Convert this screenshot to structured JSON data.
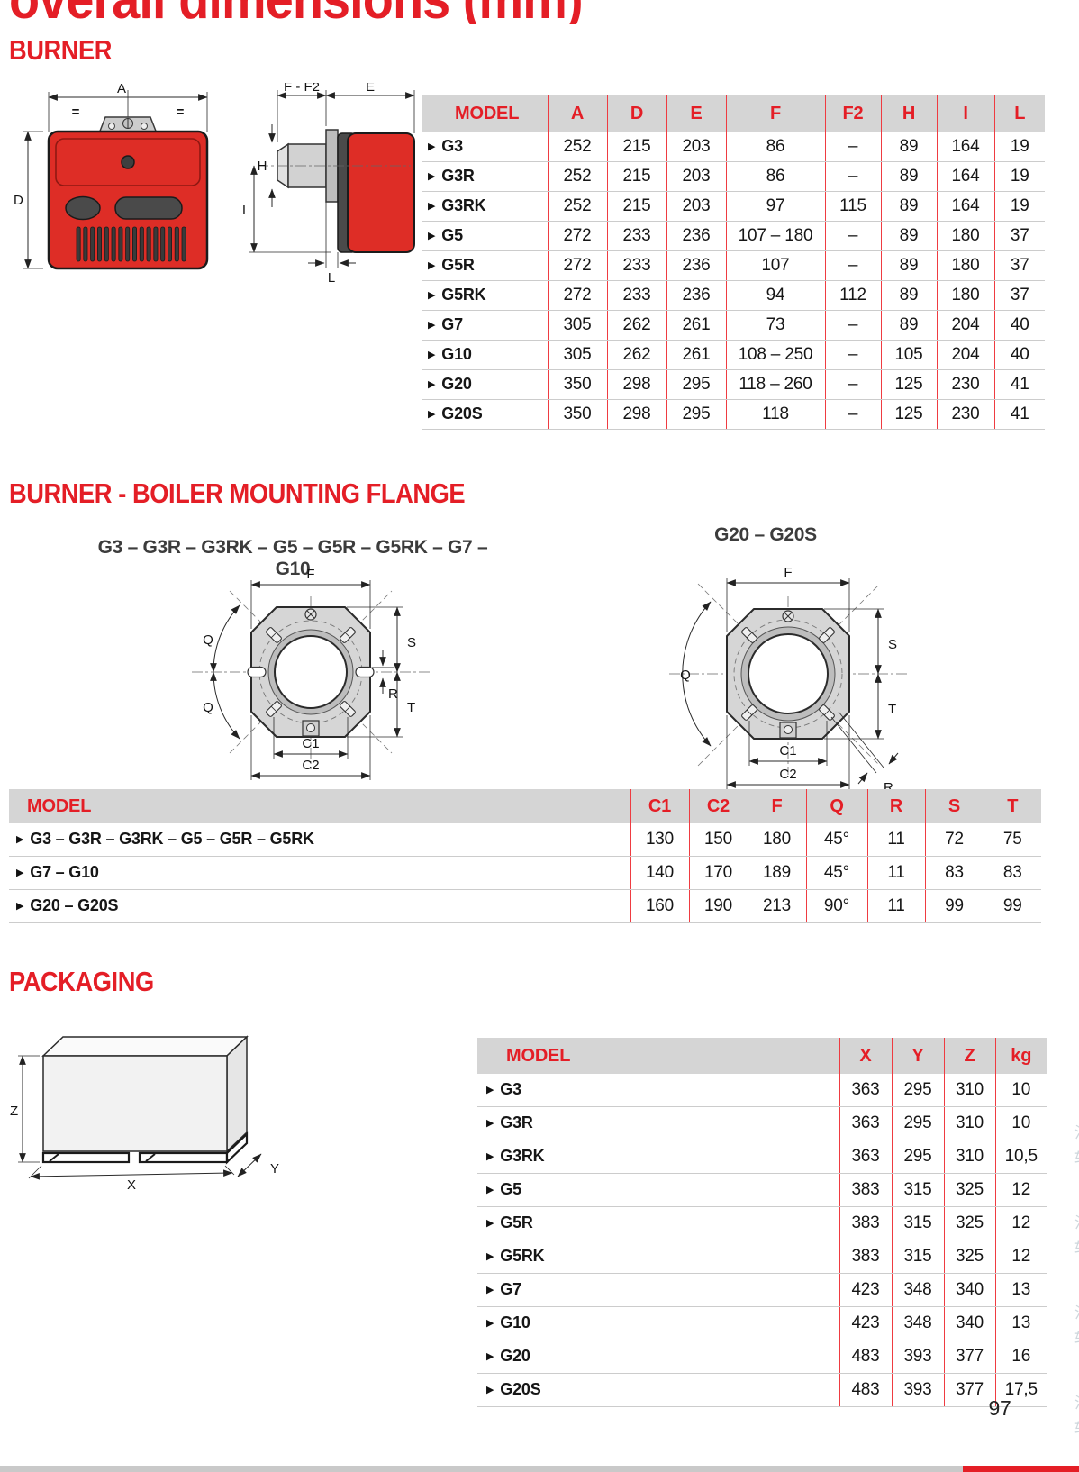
{
  "page": {
    "clipped_title": "overall dimensions (mm)",
    "page_number": "97"
  },
  "headings": {
    "burner": "BURNER",
    "flange": "BURNER - BOILER MOUNTING FLANGE",
    "packaging": "PACKAGING"
  },
  "flange_captions": {
    "small_models": "G3 – G3R – G3RK – G5 – G5R – G5RK – G7 – G10",
    "large_models": "G20 – G20S"
  },
  "icons": {
    "model_bullet": "▶"
  },
  "diagrams": {
    "burner_front": {
      "a": "A",
      "d": "D",
      "eq_left": "=",
      "eq_right": "="
    },
    "burner_side": {
      "f_f2": "F - F2",
      "e": "E",
      "h": "H",
      "i": "I",
      "l": "L"
    },
    "flange_small": {
      "f": "F",
      "q_upper": "Q",
      "q_lower": "Q",
      "r": "R",
      "s": "S",
      "t": "T",
      "c1": "C1",
      "c2": "C2"
    },
    "flange_large": {
      "f": "F",
      "q": "Q",
      "r": "R",
      "s": "S",
      "t": "T",
      "c1": "C1",
      "c2": "C2"
    },
    "package": {
      "x": "X",
      "y": "Y",
      "z": "Z"
    }
  },
  "burner_table": {
    "columns": [
      "MODEL",
      "A",
      "D",
      "E",
      "F",
      "F2",
      "H",
      "I",
      "L"
    ],
    "rows": [
      {
        "model": "G3",
        "values": [
          "252",
          "215",
          "203",
          "86",
          "–",
          "89",
          "164",
          "19"
        ]
      },
      {
        "model": "G3R",
        "values": [
          "252",
          "215",
          "203",
          "86",
          "–",
          "89",
          "164",
          "19"
        ]
      },
      {
        "model": "G3RK",
        "values": [
          "252",
          "215",
          "203",
          "97",
          "115",
          "89",
          "164",
          "19"
        ]
      },
      {
        "model": "G5",
        "values": [
          "272",
          "233",
          "236",
          "107 – 180",
          "–",
          "89",
          "180",
          "37"
        ]
      },
      {
        "model": "G5R",
        "values": [
          "272",
          "233",
          "236",
          "107",
          "–",
          "89",
          "180",
          "37"
        ]
      },
      {
        "model": "G5RK",
        "values": [
          "272",
          "233",
          "236",
          "94",
          "112",
          "89",
          "180",
          "37"
        ]
      },
      {
        "model": "G7",
        "values": [
          "305",
          "262",
          "261",
          "73",
          "–",
          "89",
          "204",
          "40"
        ]
      },
      {
        "model": "G10",
        "values": [
          "305",
          "262",
          "261",
          "108 – 250",
          "–",
          "105",
          "204",
          "40"
        ]
      },
      {
        "model": "G20",
        "values": [
          "350",
          "298",
          "295",
          "118 – 260",
          "–",
          "125",
          "230",
          "41"
        ]
      },
      {
        "model": "G20S",
        "values": [
          "350",
          "298",
          "295",
          "118",
          "–",
          "125",
          "230",
          "41"
        ]
      }
    ]
  },
  "flange_table": {
    "columns": [
      "MODEL",
      "C1",
      "C2",
      "F",
      "Q",
      "R",
      "S",
      "T"
    ],
    "rows": [
      {
        "model": "G3 – G3R – G3RK – G5 – G5R – G5RK",
        "values": [
          "130",
          "150",
          "180",
          "45°",
          "11",
          "72",
          "75"
        ]
      },
      {
        "model": "G7 – G10",
        "values": [
          "140",
          "170",
          "189",
          "45°",
          "11",
          "83",
          "83"
        ]
      },
      {
        "model": "G20 – G20S",
        "values": [
          "160",
          "190",
          "213",
          "90°",
          "11",
          "99",
          "99"
        ]
      }
    ]
  },
  "packaging_table": {
    "columns": [
      "MODEL",
      "X",
      "Y",
      "Z",
      "kg"
    ],
    "rows": [
      {
        "model": "G3",
        "values": [
          "363",
          "295",
          "310",
          "10"
        ]
      },
      {
        "model": "G3R",
        "values": [
          "363",
          "295",
          "310",
          "10"
        ]
      },
      {
        "model": "G3RK",
        "values": [
          "363",
          "295",
          "310",
          "10,5"
        ]
      },
      {
        "model": "G5",
        "values": [
          "383",
          "315",
          "325",
          "12"
        ]
      },
      {
        "model": "G5R",
        "values": [
          "383",
          "315",
          "325",
          "12"
        ]
      },
      {
        "model": "G5RK",
        "values": [
          "383",
          "315",
          "325",
          "12"
        ]
      },
      {
        "model": "G7",
        "values": [
          "423",
          "348",
          "340",
          "13"
        ]
      },
      {
        "model": "G10",
        "values": [
          "423",
          "348",
          "340",
          "13"
        ]
      },
      {
        "model": "G20",
        "values": [
          "483",
          "393",
          "377",
          "16"
        ]
      },
      {
        "model": "G20S",
        "values": [
          "483",
          "393",
          "377",
          "17,5"
        ]
      }
    ]
  },
  "colors": {
    "accent_red": "#e41e26",
    "burner_body_red": "#de2d26",
    "table_header_bg": "#d5d5d5",
    "separator_red": "#ef3b41"
  },
  "watermark": {
    "pair": "泛轧"
  }
}
